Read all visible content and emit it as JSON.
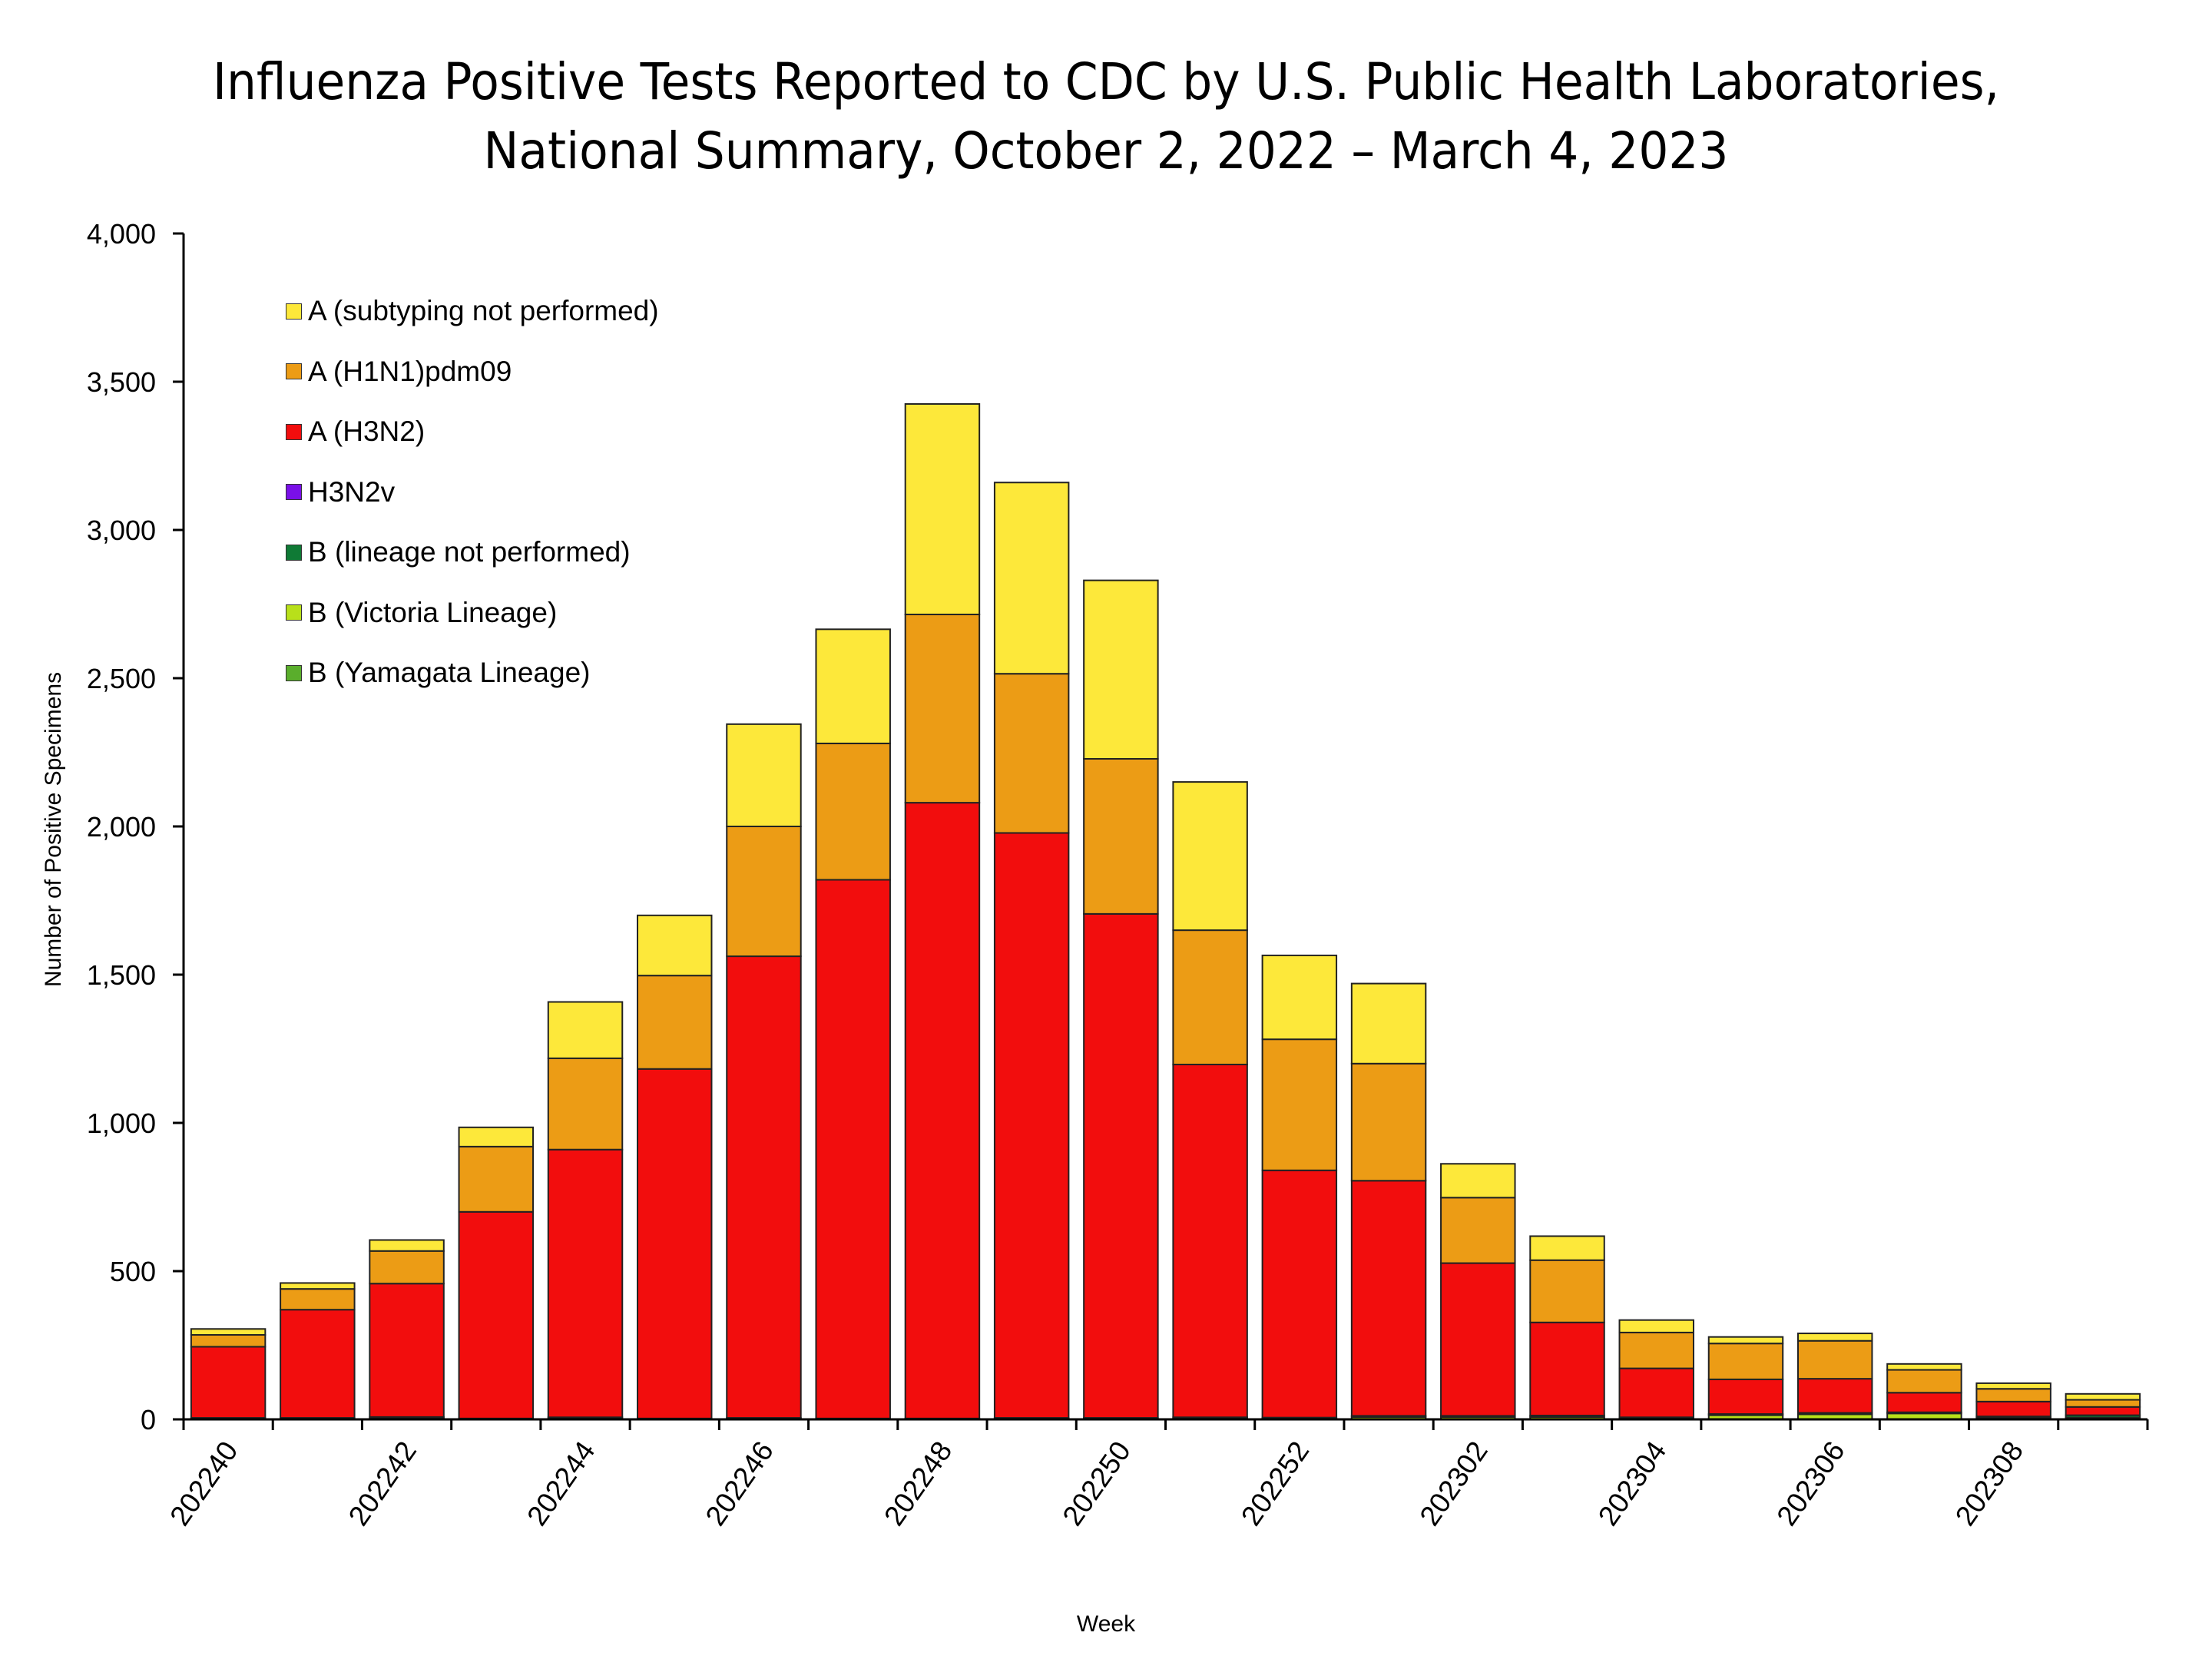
{
  "title_lines": [
    "Influenza Positive Tests Reported to CDC by U.S. Public Health Laboratories,",
    "National Summary, October 2, 2022 – March 4, 2023"
  ],
  "chart_data": {
    "type": "bar",
    "stacked": true,
    "title": "Influenza Positive Tests Reported to CDC by U.S. Public Health Laboratories, National Summary, October 2, 2022 – March 4, 2023",
    "xlabel": "Week",
    "ylabel": "Number of Positive Specimens",
    "ylim": [
      0,
      4000
    ],
    "yticks": [
      0,
      500,
      1000,
      1500,
      2000,
      2500,
      3000,
      3500,
      4000
    ],
    "ytick_labels": [
      "0",
      "500",
      "1,000",
      "1,500",
      "2,000",
      "2,500",
      "3,000",
      "3,500",
      "4,000"
    ],
    "categories": [
      "202240",
      "202241",
      "202242",
      "202243",
      "202244",
      "202245",
      "202246",
      "202247",
      "202248",
      "202249",
      "202250",
      "202251",
      "202252",
      "202301",
      "202302",
      "202303",
      "202304",
      "202305",
      "202306",
      "202307",
      "202308",
      "202309"
    ],
    "xtick_labels_shown": [
      "202240",
      "202242",
      "202244",
      "202246",
      "202248",
      "202250",
      "202252",
      "202302",
      "202304",
      "202306",
      "202308"
    ],
    "grid": false,
    "legend_position": "top-left",
    "series": [
      {
        "name": "B (Yamagata Lineage)",
        "color": "#5aae2c",
        "values": [
          0,
          0,
          0,
          0,
          0,
          0,
          0,
          0,
          0,
          0,
          0,
          0,
          0,
          0,
          0,
          0,
          0,
          0,
          0,
          0,
          0,
          0
        ]
      },
      {
        "name": "B (Victoria Lineage)",
        "color": "#b8e01a",
        "values": [
          2,
          2,
          3,
          1,
          2,
          1,
          2,
          1,
          1,
          2,
          2,
          3,
          3,
          8,
          8,
          8,
          4,
          14,
          17,
          20,
          6,
          6
        ]
      },
      {
        "name": "B (lineage not performed)",
        "color": "#0f7a35",
        "values": [
          3,
          3,
          5,
          2,
          5,
          2,
          3,
          2,
          2,
          3,
          3,
          4,
          3,
          4,
          4,
          5,
          3,
          4,
          5,
          4,
          4,
          8
        ]
      },
      {
        "name": "H3N2v",
        "color": "#7a10e8",
        "values": [
          0,
          0,
          0,
          0,
          0,
          0,
          0,
          0,
          0,
          0,
          0,
          0,
          0,
          0,
          0,
          0,
          0,
          0,
          0,
          0,
          0,
          0
        ]
      },
      {
        "name": "A (H3N2)",
        "color": "#f20d0d",
        "values": [
          240,
          365,
          450,
          697,
          903,
          1179,
          1557,
          1817,
          2077,
          1973,
          1700,
          1190,
          834,
          793,
          515,
          314,
          165,
          117,
          115,
          66,
          50,
          28
        ]
      },
      {
        "name": "A (H1N1)pdm09",
        "color": "#ec9c15",
        "values": [
          40,
          70,
          110,
          220,
          308,
          315,
          438,
          460,
          635,
          537,
          523,
          453,
          442,
          395,
          221,
          210,
          121,
          121,
          128,
          77,
          43,
          24
        ]
      },
      {
        "name": "A (subtyping not performed)",
        "color": "#fde83a",
        "values": [
          20,
          20,
          37,
          65,
          190,
          203,
          345,
          385,
          710,
          645,
          602,
          500,
          283,
          270,
          114,
          81,
          42,
          22,
          25,
          20,
          19,
          20
        ]
      }
    ]
  },
  "legend": [
    {
      "label": "A (subtyping not performed)",
      "color": "#fde83a"
    },
    {
      "label": "A (H1N1)pdm09",
      "color": "#ec9c15"
    },
    {
      "label": "A (H3N2)",
      "color": "#f20d0d"
    },
    {
      "label": "H3N2v",
      "color": "#7a10e8"
    },
    {
      "label": "B (lineage not performed)",
      "color": "#0f7a35"
    },
    {
      "label": "B (Victoria Lineage)",
      "color": "#b8e01a"
    },
    {
      "label": "B (Yamagata Lineage)",
      "color": "#5aae2c"
    }
  ]
}
